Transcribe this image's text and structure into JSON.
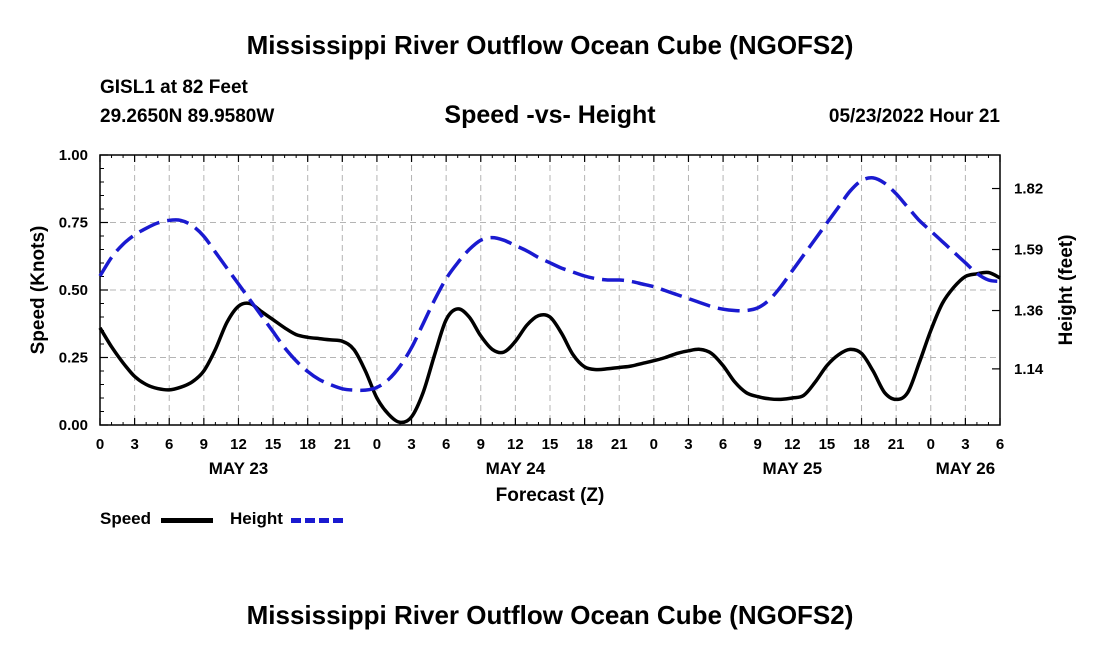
{
  "page_title": "Mississippi River Outflow Ocean Cube (NGOFS2)",
  "station": {
    "name": "GISL1 at 82 Feet",
    "coordinates": "29.2650N  89.9580W",
    "timestamp": "05/23/2022 Hour 21"
  },
  "footer_title": "Mississippi River Outflow Ocean Cube (NGOFS2)",
  "chart_data": {
    "type": "line",
    "title": "Speed -vs- Height",
    "xlabel": "Forecast (Z)",
    "ylabel_left": "Speed (Knots)",
    "ylabel_right": "Height (feet)",
    "x_range_hours": [
      0,
      78
    ],
    "x_tick_labels": [
      "0",
      "3",
      "6",
      "9",
      "12",
      "15",
      "18",
      "21",
      "0",
      "3",
      "6",
      "9",
      "12",
      "15",
      "18",
      "21",
      "0",
      "3",
      "6",
      "9",
      "12",
      "15",
      "18",
      "21",
      "0",
      "3",
      "6"
    ],
    "day_labels": [
      {
        "label": "MAY 23",
        "hour": 12
      },
      {
        "label": "MAY 24",
        "hour": 36
      },
      {
        "label": "MAY 25",
        "hour": 60
      },
      {
        "label": "MAY 26",
        "hour": 75
      }
    ],
    "ylim_left": [
      0,
      1.0
    ],
    "yticks_left": [
      "0.00",
      "0.25",
      "0.50",
      "0.75",
      "1.00"
    ],
    "ylim_right": [
      0.9284,
      1.9464
    ],
    "yticks_right": [
      "1.14",
      "1.36",
      "1.59",
      "1.82"
    ],
    "grid": true,
    "series": [
      {
        "name": "Speed",
        "color": "#000000",
        "axis": "left",
        "style": "solid",
        "x": [
          0,
          1,
          2,
          3,
          4,
          5,
          6,
          7,
          8,
          9,
          10,
          11,
          12,
          13,
          14,
          15,
          16,
          17,
          18,
          19,
          20,
          21,
          22,
          23,
          24,
          25,
          26,
          27,
          28,
          29,
          30,
          31,
          32,
          33,
          34,
          35,
          36,
          37,
          38,
          39,
          40,
          41,
          42,
          43,
          44,
          45,
          46,
          47,
          48,
          49,
          50,
          51,
          52,
          53,
          54,
          55,
          56,
          57,
          58,
          59,
          60,
          61,
          62,
          63,
          64,
          65,
          66,
          67,
          68,
          69,
          70,
          71,
          72,
          73,
          74,
          75,
          76,
          77,
          78
        ],
        "values": [
          0.36,
          0.29,
          0.23,
          0.18,
          0.15,
          0.135,
          0.13,
          0.14,
          0.16,
          0.2,
          0.28,
          0.38,
          0.44,
          0.45,
          0.42,
          0.39,
          0.36,
          0.335,
          0.325,
          0.32,
          0.315,
          0.31,
          0.28,
          0.2,
          0.1,
          0.04,
          0.01,
          0.03,
          0.12,
          0.26,
          0.39,
          0.43,
          0.4,
          0.33,
          0.28,
          0.27,
          0.31,
          0.37,
          0.405,
          0.4,
          0.34,
          0.26,
          0.215,
          0.205,
          0.208,
          0.213,
          0.218,
          0.228,
          0.238,
          0.25,
          0.265,
          0.275,
          0.28,
          0.265,
          0.22,
          0.16,
          0.12,
          0.105,
          0.097,
          0.095,
          0.1,
          0.11,
          0.16,
          0.22,
          0.26,
          0.28,
          0.265,
          0.2,
          0.12,
          0.095,
          0.12,
          0.23,
          0.35,
          0.45,
          0.51,
          0.55,
          0.56,
          0.565,
          0.545
        ]
      },
      {
        "name": "Height",
        "color": "#1a1ad0",
        "axis": "right",
        "style": "dashed",
        "x": [
          0,
          1,
          2,
          3,
          4,
          5,
          6,
          7,
          8,
          9,
          10,
          11,
          12,
          13,
          14,
          15,
          16,
          17,
          18,
          19,
          20,
          21,
          22,
          23,
          24,
          25,
          26,
          27,
          28,
          29,
          30,
          31,
          32,
          33,
          34,
          35,
          36,
          37,
          38,
          39,
          40,
          41,
          42,
          43,
          44,
          45,
          46,
          47,
          48,
          49,
          50,
          51,
          52,
          53,
          54,
          55,
          56,
          57,
          58,
          59,
          60,
          61,
          62,
          63,
          64,
          65,
          66,
          67,
          68,
          69,
          70,
          71,
          72,
          73,
          74,
          75,
          76,
          77,
          78
        ],
        "values": [
          1.49,
          1.56,
          1.61,
          1.645,
          1.67,
          1.69,
          1.7,
          1.7,
          1.68,
          1.64,
          1.58,
          1.52,
          1.46,
          1.4,
          1.34,
          1.28,
          1.22,
          1.17,
          1.13,
          1.1,
          1.08,
          1.065,
          1.06,
          1.06,
          1.07,
          1.1,
          1.15,
          1.22,
          1.31,
          1.4,
          1.48,
          1.54,
          1.59,
          1.625,
          1.635,
          1.625,
          1.605,
          1.585,
          1.56,
          1.54,
          1.52,
          1.505,
          1.49,
          1.48,
          1.475,
          1.475,
          1.47,
          1.46,
          1.45,
          1.435,
          1.42,
          1.405,
          1.39,
          1.375,
          1.365,
          1.36,
          1.36,
          1.37,
          1.4,
          1.45,
          1.51,
          1.57,
          1.63,
          1.69,
          1.75,
          1.81,
          1.85,
          1.86,
          1.84,
          1.8,
          1.75,
          1.7,
          1.66,
          1.62,
          1.58,
          1.54,
          1.5,
          1.475,
          1.47
        ]
      }
    ],
    "legend": [
      {
        "label": "Speed",
        "color": "#000000",
        "style": "solid"
      },
      {
        "label": "Height",
        "color": "#1a1ad0",
        "style": "dashed"
      }
    ]
  }
}
